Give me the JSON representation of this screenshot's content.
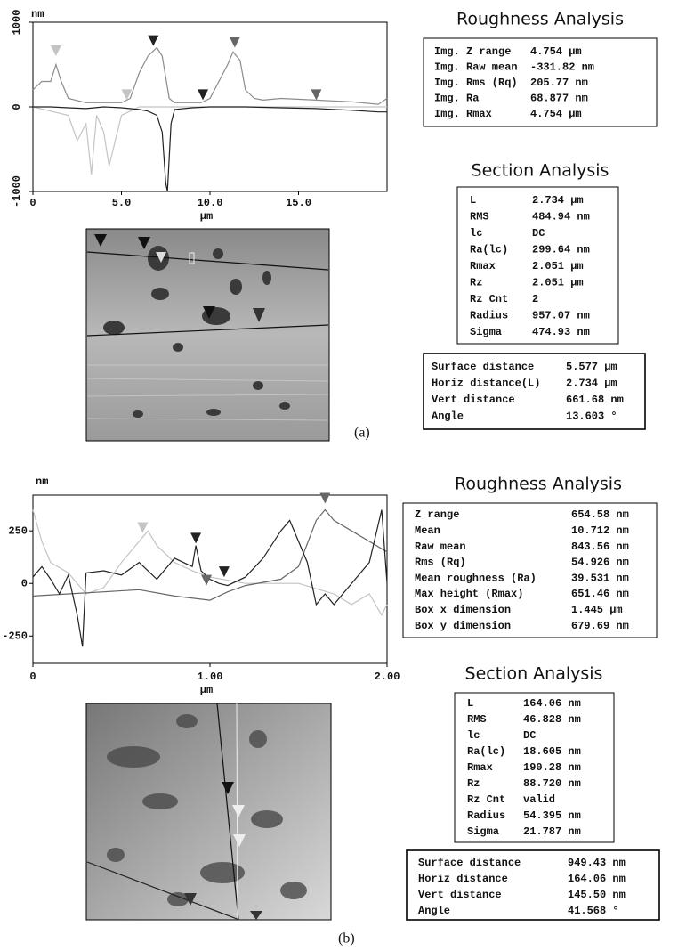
{
  "panels": [
    {
      "label": "(a)",
      "profile": {
        "y_unit": "nm",
        "x_unit": "μm",
        "xlim": [
          0,
          20
        ],
        "ylim": [
          -1000,
          1000
        ],
        "xticks": [
          {
            "value": 0,
            "label": "0"
          },
          {
            "value": 5,
            "label": "5.0"
          },
          {
            "value": 10,
            "label": "10.0"
          },
          {
            "value": 15,
            "label": "15.0"
          }
        ],
        "yticks": [
          -1000,
          0,
          1000
        ],
        "ytick_rotation": 90,
        "series": [
          {
            "color": "#8c8c8c",
            "x": [
              0,
              0.5,
              1,
              1.3,
              1.6,
              2,
              3,
              4,
              5,
              5.5,
              6,
              6.5,
              7,
              7.3,
              7.7,
              8,
              8.5,
              9,
              9.5,
              10,
              10.5,
              11,
              11.3,
              11.7,
              12,
              12.5,
              13,
              14,
              16,
              18,
              19.5,
              20
            ],
            "values": [
              200,
              300,
              300,
              500,
              300,
              100,
              50,
              50,
              50,
              100,
              400,
              600,
              700,
              600,
              100,
              50,
              50,
              50,
              50,
              100,
              300,
              500,
              650,
              550,
              200,
              100,
              80,
              100,
              80,
              60,
              30,
              100
            ]
          },
          {
            "color": "#c4c4c4",
            "x": [
              0,
              1,
              2,
              2.5,
              3,
              3.3,
              3.6,
              4,
              4.3,
              5,
              5.5,
              6,
              8,
              10,
              15,
              20
            ],
            "values": [
              0,
              -50,
              -100,
              -400,
              -200,
              -800,
              -100,
              -300,
              -700,
              -100,
              -50,
              0,
              0,
              0,
              0,
              0
            ]
          },
          {
            "color": "#222222",
            "x": [
              0,
              1,
              2,
              3,
              4,
              5,
              6,
              6.5,
              7,
              7.3,
              7.5,
              7.6,
              7.8,
              8,
              9,
              10,
              12,
              14,
              16,
              18,
              19.5,
              20
            ],
            "values": [
              0,
              0,
              -10,
              -20,
              0,
              -10,
              -30,
              -50,
              -100,
              -300,
              -900,
              -1000,
              -200,
              -30,
              -10,
              0,
              0,
              -10,
              -20,
              -40,
              -60,
              -60
            ]
          }
        ],
        "markers": [
          {
            "x": 1.3,
            "y": 600,
            "color": "#c4c4c4"
          },
          {
            "x": 5.3,
            "y": 80,
            "color": "#c4c4c4"
          },
          {
            "x": 6.8,
            "y": 720,
            "color": "#222222"
          },
          {
            "x": 9.6,
            "y": 80,
            "color": "#222222"
          },
          {
            "x": 11.4,
            "y": 700,
            "color": "#666666"
          },
          {
            "x": 16,
            "y": 80,
            "color": "#666666"
          }
        ]
      },
      "roughness": {
        "title": "Roughness Analysis",
        "rows": [
          [
            "Img. Z range",
            "4.754 μm"
          ],
          [
            "Img. Raw mean",
            "-331.82 nm"
          ],
          [
            "Img. Rms (Rq)",
            "205.77 nm"
          ],
          [
            "Img. Ra",
            "68.877 nm"
          ],
          [
            "Img. Rmax",
            "4.754 μm"
          ]
        ]
      },
      "section": {
        "title": "Section Analysis",
        "rows": [
          [
            "L",
            "2.734 μm"
          ],
          [
            "RMS",
            "484.94 nm"
          ],
          [
            "lc",
            "DC"
          ],
          [
            "Ra(lc)",
            "299.64 nm"
          ],
          [
            "Rmax",
            "2.051 μm"
          ],
          [
            "Rz",
            "2.051 μm"
          ],
          [
            "Rz Cnt",
            "2"
          ],
          [
            "Radius",
            "957.07 nm"
          ],
          [
            "Sigma",
            "474.93 nm"
          ]
        ]
      },
      "distance": {
        "rows": [
          [
            "Surface distance",
            "5.577 μm"
          ],
          [
            "Horiz distance(L)",
            "2.734 μm"
          ],
          [
            "Vert distance",
            "661.68 nm"
          ],
          [
            "Angle",
            "13.603 °"
          ]
        ]
      }
    },
    {
      "label": "(b)",
      "profile": {
        "y_unit": "nm",
        "x_unit": "μm",
        "xlim": [
          0,
          2
        ],
        "ylim": [
          -380,
          420
        ],
        "xticks": [
          {
            "value": 0,
            "label": "0"
          },
          {
            "value": 1,
            "label": "1.00"
          },
          {
            "value": 2,
            "label": "2.00"
          }
        ],
        "yticks": [
          -250,
          0,
          250
        ],
        "ytick_rotation": 0,
        "series": [
          {
            "color": "#c4c4c4",
            "x": [
              0,
              0.05,
              0.1,
              0.2,
              0.3,
              0.4,
              0.5,
              0.6,
              0.65,
              0.7,
              0.8,
              0.9,
              1.0,
              1.2,
              1.5,
              1.7,
              1.8,
              1.9,
              1.97,
              2.0
            ],
            "values": [
              350,
              200,
              100,
              50,
              -50,
              -20,
              100,
              200,
              250,
              180,
              100,
              60,
              30,
              0,
              0,
              -50,
              -100,
              -50,
              -150,
              -100
            ]
          },
          {
            "color": "#666666",
            "x": [
              0,
              0.2,
              0.4,
              0.6,
              0.8,
              1.0,
              1.1,
              1.2,
              1.4,
              1.5,
              1.6,
              1.65,
              1.7,
              1.8,
              1.9,
              2.0
            ],
            "values": [
              -60,
              -50,
              -40,
              -30,
              -60,
              -80,
              -40,
              -10,
              20,
              80,
              300,
              350,
              300,
              250,
              200,
              150
            ]
          },
          {
            "color": "#222222",
            "x": [
              0,
              0.05,
              0.1,
              0.15,
              0.2,
              0.25,
              0.28,
              0.3,
              0.4,
              0.5,
              0.6,
              0.7,
              0.8,
              0.9,
              0.92,
              0.95,
              1.0,
              1.05,
              1.1,
              1.2,
              1.3,
              1.4,
              1.45,
              1.5,
              1.55,
              1.6,
              1.65,
              1.7,
              1.8,
              1.9,
              1.97,
              2.0
            ],
            "values": [
              30,
              80,
              20,
              -50,
              40,
              -150,
              -300,
              50,
              60,
              40,
              100,
              20,
              120,
              80,
              180,
              60,
              20,
              0,
              -10,
              30,
              120,
              250,
              300,
              200,
              100,
              -100,
              -50,
              -100,
              0,
              100,
              350,
              0
            ]
          }
        ],
        "markers": [
          {
            "x": 0.62,
            "y": 240,
            "color": "#c4c4c4"
          },
          {
            "x": 0.92,
            "y": 190,
            "color": "#222222"
          },
          {
            "x": 1.08,
            "y": 30,
            "color": "#222222"
          },
          {
            "x": 0.98,
            "y": -10,
            "color": "#666666"
          },
          {
            "x": 1.65,
            "y": 380,
            "color": "#666666"
          }
        ]
      },
      "roughness": {
        "title": "Roughness Analysis",
        "rows": [
          [
            "Z range",
            "654.58 nm"
          ],
          [
            "Mean",
            "10.712 nm"
          ],
          [
            "Raw mean",
            "843.56 nm"
          ],
          [
            "Rms (Rq)",
            "54.926 nm"
          ],
          [
            "Mean roughness (Ra)",
            "39.531 nm"
          ],
          [
            "Max height (Rmax)",
            "651.46 nm"
          ],
          [
            "Box x dimension",
            "1.445 μm"
          ],
          [
            "Box y dimension",
            "679.69 nm"
          ]
        ]
      },
      "section": {
        "title": "Section Analysis",
        "rows": [
          [
            "L",
            "164.06 nm"
          ],
          [
            "RMS",
            "46.828 nm"
          ],
          [
            "lc",
            "DC"
          ],
          [
            "Ra(lc)",
            "18.605 nm"
          ],
          [
            "Rmax",
            "190.28 nm"
          ],
          [
            "Rz",
            "88.720 nm"
          ],
          [
            "Rz Cnt",
            "valid"
          ],
          [
            "Radius",
            "54.395 nm"
          ],
          [
            "Sigma",
            "21.787 nm"
          ]
        ]
      },
      "distance": {
        "rows": [
          [
            "Surface distance",
            "949.43 nm"
          ],
          [
            "Horiz distance",
            "164.06 nm"
          ],
          [
            "Vert distance",
            "145.50 nm"
          ],
          [
            "Angle",
            "41.568 °"
          ]
        ]
      }
    }
  ]
}
